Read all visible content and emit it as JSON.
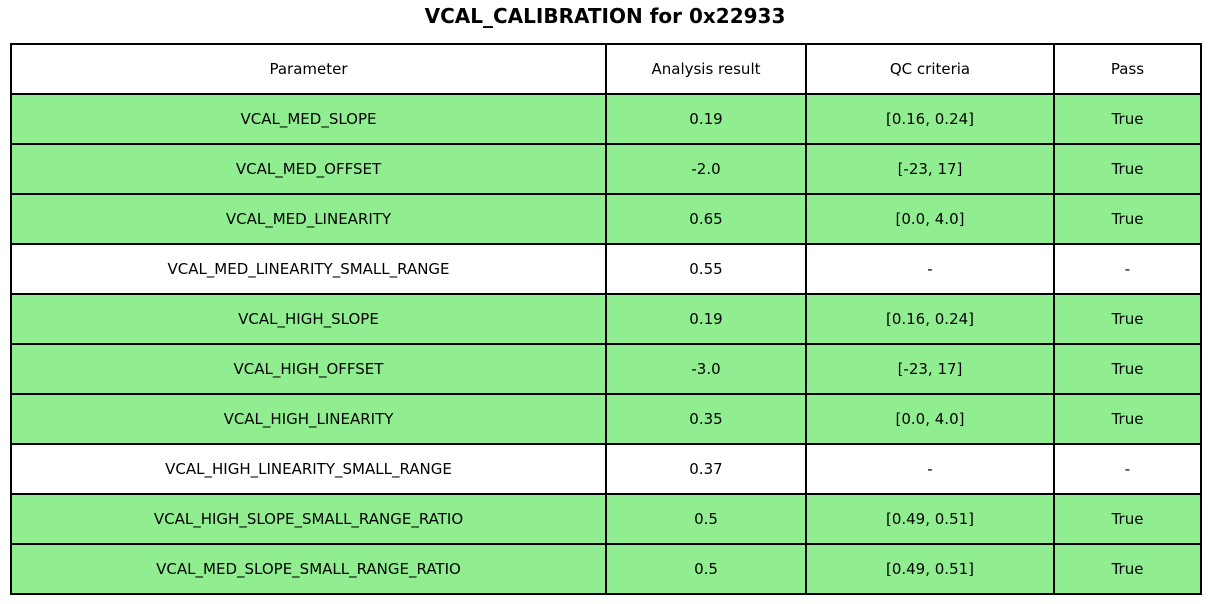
{
  "title": "VCAL_CALIBRATION for 0x22933",
  "colors": {
    "pass_row_green": "#90ee90",
    "neutral_row": "#ffffff",
    "border": "#000000",
    "text": "#000000",
    "background": "#ffffff"
  },
  "chart_data": {
    "type": "table",
    "title": "VCAL_CALIBRATION for 0x22933",
    "columns": [
      "Parameter",
      "Analysis result",
      "QC criteria",
      "Pass"
    ],
    "rows": [
      {
        "parameter": "VCAL_MED_SLOPE",
        "result": "0.19",
        "criteria": "[0.16, 0.24]",
        "pass": "True",
        "highlight": true
      },
      {
        "parameter": "VCAL_MED_OFFSET",
        "result": "-2.0",
        "criteria": "[-23, 17]",
        "pass": "True",
        "highlight": true
      },
      {
        "parameter": "VCAL_MED_LINEARITY",
        "result": "0.65",
        "criteria": "[0.0, 4.0]",
        "pass": "True",
        "highlight": true
      },
      {
        "parameter": "VCAL_MED_LINEARITY_SMALL_RANGE",
        "result": "0.55",
        "criteria": "-",
        "pass": "-",
        "highlight": false
      },
      {
        "parameter": "VCAL_HIGH_SLOPE",
        "result": "0.19",
        "criteria": "[0.16, 0.24]",
        "pass": "True",
        "highlight": true
      },
      {
        "parameter": "VCAL_HIGH_OFFSET",
        "result": "-3.0",
        "criteria": "[-23, 17]",
        "pass": "True",
        "highlight": true
      },
      {
        "parameter": "VCAL_HIGH_LINEARITY",
        "result": "0.35",
        "criteria": "[0.0, 4.0]",
        "pass": "True",
        "highlight": true
      },
      {
        "parameter": "VCAL_HIGH_LINEARITY_SMALL_RANGE",
        "result": "0.37",
        "criteria": "-",
        "pass": "-",
        "highlight": false
      },
      {
        "parameter": "VCAL_HIGH_SLOPE_SMALL_RANGE_RATIO",
        "result": "0.5",
        "criteria": "[0.49, 0.51]",
        "pass": "True",
        "highlight": true
      },
      {
        "parameter": "VCAL_MED_SLOPE_SMALL_RANGE_RATIO",
        "result": "0.5",
        "criteria": "[0.49, 0.51]",
        "pass": "True",
        "highlight": true
      }
    ]
  }
}
